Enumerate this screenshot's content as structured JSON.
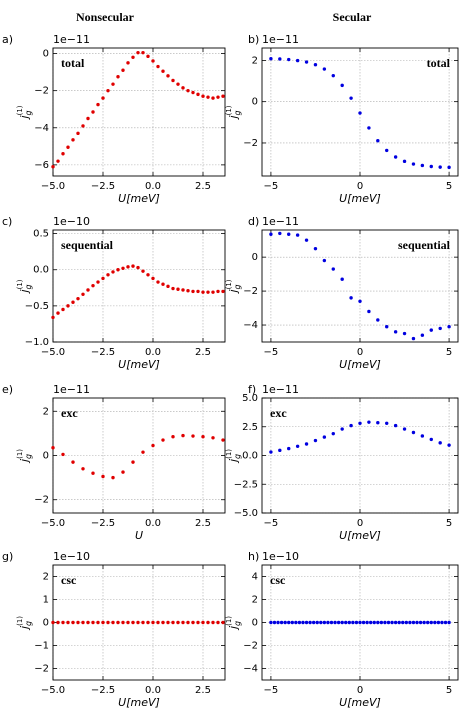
{
  "column_titles": [
    "Nonsecular",
    "Secular"
  ],
  "chart_data": [
    {
      "type": "scatter",
      "panel_label": "a)",
      "annotation": "total",
      "annotation_pos": "upper left",
      "offset_text": "1e−11",
      "xlabel": "U[meV]",
      "ylabel": {
        "base": "j",
        "sub": "g",
        "sup": "(1)"
      },
      "color": "#e00000",
      "grid": true,
      "xlim": [
        -5,
        3.6
      ],
      "xticks": [
        {
          "value": -5,
          "label": "−5.0"
        },
        {
          "value": -2.5,
          "label": "−2.5"
        },
        {
          "value": 0,
          "label": "0.0"
        },
        2.5
      ],
      "ylim": [
        -6.6,
        0.3
      ],
      "yticks": [
        {
          "value": -6,
          "label": "−6"
        },
        {
          "value": -4,
          "label": "−4"
        },
        {
          "value": -2,
          "label": "−2"
        },
        0
      ],
      "x": [
        -5,
        -4.75,
        -4.5,
        -4.25,
        -4,
        -3.75,
        -3.5,
        -3.25,
        -3,
        -2.75,
        -2.5,
        -2.25,
        -2,
        -1.75,
        -1.5,
        -1.25,
        -1,
        -0.75,
        -0.5,
        -0.25,
        0,
        0.25,
        0.5,
        0.75,
        1,
        1.25,
        1.5,
        1.75,
        2,
        2.25,
        2.5,
        2.75,
        3,
        3.25,
        3.5
      ],
      "values": [
        -6.1,
        -5.8,
        -5.4,
        -5.05,
        -4.65,
        -4.3,
        -3.9,
        -3.5,
        -3.15,
        -2.75,
        -2.4,
        -2.0,
        -1.65,
        -1.25,
        -0.9,
        -0.5,
        -0.2,
        0.05,
        0.05,
        -0.15,
        -0.4,
        -0.7,
        -0.95,
        -1.2,
        -1.45,
        -1.65,
        -1.85,
        -2.0,
        -2.1,
        -2.2,
        -2.3,
        -2.35,
        -2.4,
        -2.35,
        -2.3
      ]
    },
    {
      "type": "scatter",
      "panel_label": "b)",
      "annotation": "total",
      "annotation_pos": "upper right",
      "offset_text": "1e−11",
      "xlabel": "U[meV]",
      "ylabel": {
        "base": "j",
        "sub": "g",
        "sup": "(1)"
      },
      "color": "#0000e0",
      "grid": true,
      "xlim": [
        -5.5,
        5.5
      ],
      "xticks": [
        {
          "value": -5,
          "label": "−5"
        },
        0,
        5
      ],
      "ylim": [
        -3.6,
        2.6
      ],
      "yticks": [
        {
          "value": -2,
          "label": "−2"
        },
        0,
        2
      ],
      "x": [
        -5,
        -4.5,
        -4,
        -3.5,
        -3,
        -2.5,
        -2,
        -1.5,
        -1,
        -0.5,
        0,
        0.5,
        1,
        1.5,
        2,
        2.5,
        3,
        3.5,
        4,
        4.5,
        5
      ],
      "values": [
        2.08,
        2.07,
        2.04,
        1.99,
        1.92,
        1.79,
        1.58,
        1.26,
        0.79,
        0.17,
        -0.55,
        -1.27,
        -1.89,
        -2.36,
        -2.68,
        -2.89,
        -3.02,
        -3.09,
        -3.14,
        -3.17,
        -3.18
      ]
    },
    {
      "type": "scatter",
      "panel_label": "c)",
      "annotation": "sequential",
      "annotation_pos": "upper left",
      "offset_text": "1e−10",
      "xlabel": "U[meV]",
      "ylabel": {
        "base": "j",
        "sub": "g",
        "sup": "(1)"
      },
      "color": "#e00000",
      "grid": true,
      "xlim": [
        -5,
        3.6
      ],
      "xticks": [
        {
          "value": -5,
          "label": "−5.0"
        },
        {
          "value": -2.5,
          "label": "−2.5"
        },
        {
          "value": 0,
          "label": "0.0"
        },
        2.5
      ],
      "ylim": [
        -1.0,
        0.55
      ],
      "yticks": [
        {
          "value": -1.0,
          "label": "−1.0"
        },
        {
          "value": -0.5,
          "label": "−0.5"
        },
        {
          "value": 0,
          "label": "0.0"
        },
        0.5
      ],
      "x": [
        -5,
        -4.75,
        -4.5,
        -4.25,
        -4,
        -3.75,
        -3.5,
        -3.25,
        -3,
        -2.75,
        -2.5,
        -2.25,
        -2,
        -1.75,
        -1.5,
        -1.25,
        -1,
        -0.75,
        -0.5,
        -0.25,
        0,
        0.25,
        0.5,
        0.75,
        1,
        1.25,
        1.5,
        1.75,
        2,
        2.25,
        2.5,
        2.75,
        3,
        3.25,
        3.5
      ],
      "values": [
        -0.66,
        -0.6,
        -0.55,
        -0.5,
        -0.45,
        -0.4,
        -0.34,
        -0.28,
        -0.22,
        -0.17,
        -0.12,
        -0.07,
        -0.03,
        0.0,
        0.02,
        0.04,
        0.05,
        0.03,
        -0.02,
        -0.07,
        -0.12,
        -0.17,
        -0.2,
        -0.23,
        -0.26,
        -0.27,
        -0.28,
        -0.29,
        -0.3,
        -0.3,
        -0.31,
        -0.31,
        -0.31,
        -0.3,
        -0.3
      ]
    },
    {
      "type": "scatter",
      "panel_label": "d)",
      "annotation": "sequential",
      "annotation_pos": "upper right",
      "offset_text": "1e−11",
      "xlabel": "U[meV]",
      "ylabel": {
        "base": "j",
        "sub": "g",
        "sup": "(1)"
      },
      "color": "#0000e0",
      "grid": true,
      "xlim": [
        -5.5,
        5.5
      ],
      "xticks": [
        {
          "value": -5,
          "label": "−5"
        },
        0,
        5
      ],
      "ylim": [
        -5,
        1.6
      ],
      "yticks": [
        {
          "value": -4,
          "label": "−4"
        },
        {
          "value": -2,
          "label": "−2"
        },
        0
      ],
      "x": [
        -5,
        -4.5,
        -4,
        -3.5,
        -3,
        -2.5,
        -2,
        -1.5,
        -1,
        -0.5,
        0,
        0.5,
        1,
        1.5,
        2,
        2.5,
        3,
        3.5,
        4,
        4.5,
        5
      ],
      "values": [
        1.35,
        1.4,
        1.35,
        1.3,
        1.0,
        0.5,
        -0.2,
        -0.7,
        -1.3,
        -2.4,
        -2.6,
        -3.2,
        -3.7,
        -4.1,
        -4.4,
        -4.5,
        -4.8,
        -4.6,
        -4.3,
        -4.2,
        -4.1
      ]
    },
    {
      "type": "scatter",
      "panel_label": "e)",
      "annotation": "exc",
      "annotation_pos": "upper left",
      "offset_text": "1e−11",
      "xlabel": "U",
      "ylabel": {
        "base": "j",
        "sub": "g",
        "sup": "(1)"
      },
      "color": "#e00000",
      "grid": true,
      "xlim": [
        -5,
        3.6
      ],
      "xticks": [
        {
          "value": -5,
          "label": "−5.0"
        },
        {
          "value": -2.5,
          "label": "−2.5"
        },
        {
          "value": 0,
          "label": "0.0"
        },
        2.5
      ],
      "ylim": [
        -2.6,
        2.6
      ],
      "yticks": [
        {
          "value": -2,
          "label": "−2"
        },
        0,
        2
      ],
      "x": [
        -5,
        -4.5,
        -4,
        -3.5,
        -3,
        -2.5,
        -2,
        -1.5,
        -1,
        -0.5,
        0,
        0.5,
        1,
        1.5,
        2,
        2.5,
        3,
        3.5
      ],
      "values": [
        0.35,
        0.05,
        -0.3,
        -0.6,
        -0.8,
        -0.95,
        -1.0,
        -0.75,
        -0.3,
        0.15,
        0.45,
        0.7,
        0.85,
        0.9,
        0.88,
        0.85,
        0.8,
        0.7
      ]
    },
    {
      "type": "scatter",
      "panel_label": "f)",
      "annotation": "exc",
      "annotation_pos": "upper left",
      "offset_text": "1e−11",
      "xlabel": "U[meV]",
      "ylabel": {
        "base": "j",
        "sub": "g",
        "sup": "(1)"
      },
      "color": "#0000e0",
      "grid": true,
      "xlim": [
        -5.5,
        5.5
      ],
      "xticks": [
        {
          "value": -5,
          "label": "−5"
        },
        0,
        5
      ],
      "ylim": [
        -5,
        5
      ],
      "yticks": [
        {
          "value": -5,
          "label": "−5.0"
        },
        {
          "value": -2.5,
          "label": "−2.5"
        },
        {
          "value": 0,
          "label": "0.0"
        },
        2.5,
        {
          "value": 5,
          "label": "5.0"
        }
      ],
      "x": [
        -5,
        -4.5,
        -4,
        -3.5,
        -3,
        -2.5,
        -2,
        -1.5,
        -1,
        -0.5,
        0,
        0.5,
        1,
        1.5,
        2,
        2.5,
        3,
        3.5,
        4,
        4.5,
        5
      ],
      "values": [
        0.3,
        0.45,
        0.6,
        0.8,
        1.0,
        1.3,
        1.6,
        1.9,
        2.3,
        2.6,
        2.8,
        2.9,
        2.85,
        2.8,
        2.6,
        2.3,
        2.0,
        1.7,
        1.4,
        1.1,
        0.9
      ]
    },
    {
      "type": "scatter",
      "panel_label": "g)",
      "annotation": "csc",
      "annotation_pos": "upper left",
      "offset_text": "1e−10",
      "xlabel": "U[meV]",
      "ylabel": {
        "base": "j",
        "sub": "g",
        "sup": "(1)"
      },
      "color": "#e00000",
      "grid": true,
      "xlim": [
        -5,
        3.6
      ],
      "xticks": [
        {
          "value": -5,
          "label": "−5.0"
        },
        {
          "value": -2.5,
          "label": "−2.5"
        },
        {
          "value": 0,
          "label": "0.0"
        },
        2.5
      ],
      "ylim": [
        -2.5,
        2.5
      ],
      "yticks": [
        {
          "value": -2,
          "label": "−2"
        },
        {
          "value": -1,
          "label": "−1"
        },
        0,
        1,
        2
      ],
      "x": [
        -5,
        -4.75,
        -4.5,
        -4.25,
        -4,
        -3.75,
        -3.5,
        -3.25,
        -3,
        -2.75,
        -2.5,
        -2.25,
        -2,
        -1.75,
        -1.5,
        -1.25,
        -1,
        -0.75,
        -0.5,
        -0.25,
        0,
        0.25,
        0.5,
        0.75,
        1,
        1.25,
        1.5,
        1.75,
        2,
        2.25,
        2.5,
        2.75,
        3,
        3.25,
        3.5
      ],
      "values": [
        0,
        0,
        0,
        0,
        0,
        0,
        0,
        0,
        0,
        0,
        0,
        0,
        0,
        0,
        0,
        0,
        0,
        0,
        0,
        0,
        0,
        0,
        0,
        0,
        0,
        0,
        0,
        0,
        0,
        0,
        0,
        0,
        0,
        0,
        0
      ]
    },
    {
      "type": "scatter",
      "panel_label": "h)",
      "annotation": "csc",
      "annotation_pos": "upper left",
      "offset_text": "1e−10",
      "xlabel": "U[meV]",
      "ylabel": {
        "base": "j",
        "sub": "g",
        "sup": "(1)"
      },
      "color": "#0000e0",
      "grid": true,
      "xlim": [
        -5.5,
        5.5
      ],
      "xticks": [
        {
          "value": -5,
          "label": "−5"
        },
        0,
        5
      ],
      "ylim": [
        -5,
        5
      ],
      "yticks": [
        {
          "value": -4,
          "label": "−4"
        },
        {
          "value": -2,
          "label": "−2"
        },
        0,
        2,
        4
      ],
      "x": [
        -5,
        -4.8,
        -4.6,
        -4.4,
        -4.2,
        -4,
        -3.8,
        -3.6,
        -3.4,
        -3.2,
        -3,
        -2.8,
        -2.6,
        -2.4,
        -2.2,
        -2,
        -1.8,
        -1.6,
        -1.4,
        -1.2,
        -1,
        -0.8,
        -0.6,
        -0.4,
        -0.2,
        0,
        0.2,
        0.4,
        0.6,
        0.8,
        1,
        1.2,
        1.4,
        1.6,
        1.8,
        2,
        2.2,
        2.4,
        2.6,
        2.8,
        3,
        3.2,
        3.4,
        3.6,
        3.8,
        4,
        4.2,
        4.4,
        4.6,
        4.8,
        5
      ],
      "values": [
        0,
        0,
        0,
        0,
        0,
        0,
        0,
        0,
        0,
        0,
        0,
        0,
        0,
        0,
        0,
        0,
        0,
        0,
        0,
        0,
        0,
        0,
        0,
        0,
        0,
        0,
        0,
        0,
        0,
        0,
        0,
        0,
        0,
        0,
        0,
        0,
        0,
        0,
        0,
        0,
        0,
        0,
        0,
        0,
        0,
        0,
        0,
        0,
        0,
        0,
        0
      ]
    }
  ]
}
